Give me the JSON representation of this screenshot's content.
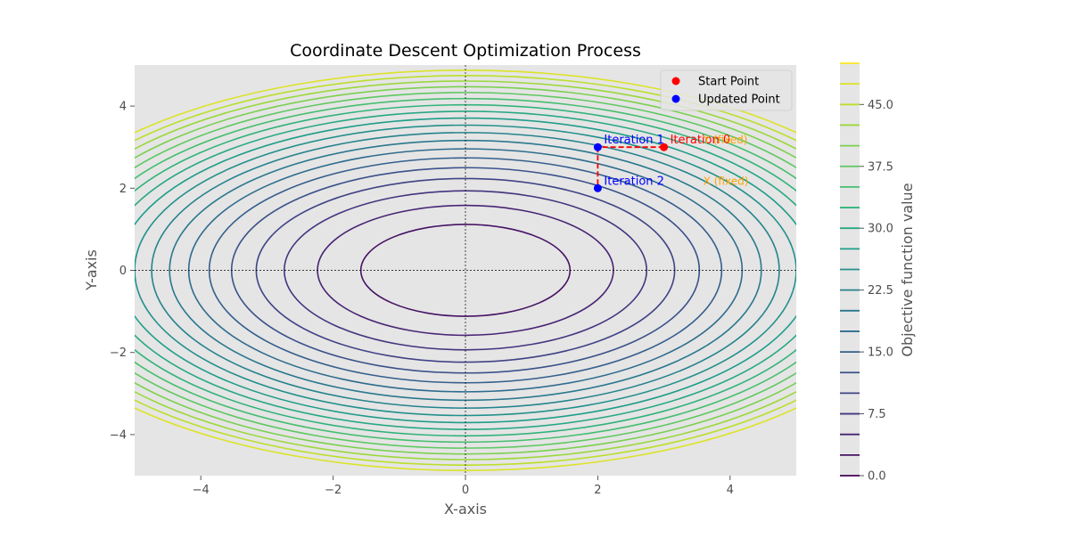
{
  "chart_data": {
    "type": "contour",
    "title": "Coordinate Descent Optimization Process",
    "xlabel": "X-axis",
    "ylabel": "Y-axis",
    "xlim": [
      -5,
      5
    ],
    "ylim": [
      -5,
      5
    ],
    "xticks": [
      -4,
      -2,
      0,
      2,
      4
    ],
    "yticks": [
      -4,
      -2,
      0,
      2,
      4
    ],
    "xtick_labels": [
      "−4",
      "−2",
      "0",
      "2",
      "4"
    ],
    "ytick_labels": [
      "−4",
      "−2",
      "0",
      "2",
      "4"
    ],
    "function": "x^2 + 2*y^2",
    "contour_levels": [
      2.5,
      5.0,
      7.5,
      10.0,
      12.5,
      15.0,
      17.5,
      20.0,
      22.5,
      25.0,
      27.5,
      30.0,
      32.5,
      35.0,
      37.5,
      40.0,
      42.5,
      45.0,
      47.5
    ],
    "colorbar": {
      "label": "Objective function value",
      "min": 0.0,
      "max": 50.0,
      "ticks": [
        0.0,
        7.5,
        15.0,
        22.5,
        30.0,
        37.5,
        45.0
      ],
      "tick_labels": [
        "0.0",
        "7.5",
        "15.0",
        "22.5",
        "30.0",
        "37.5",
        "45.0"
      ]
    },
    "series": [
      {
        "name": "Start Point",
        "color": "#ff0000",
        "points": [
          [
            3,
            3
          ]
        ]
      },
      {
        "name": "Updated Point",
        "color": "#0000ff",
        "points": [
          [
            2,
            3
          ],
          [
            2,
            2
          ]
        ]
      }
    ],
    "path": [
      [
        3,
        3
      ],
      [
        2,
        3
      ],
      [
        2,
        2
      ]
    ],
    "path_color": "#ff0000",
    "annotations": [
      {
        "text": "Iteration 0",
        "x": 3,
        "y": 3,
        "color": "#ff0000",
        "size": "normal"
      },
      {
        "text": "Iteration 1",
        "x": 2,
        "y": 3,
        "color": "#0000ff",
        "size": "normal"
      },
      {
        "text": "Iteration 2",
        "x": 2,
        "y": 2,
        "color": "#0000ff",
        "size": "normal"
      },
      {
        "text": "Y (fixed)",
        "x": 3.5,
        "y": 3,
        "color": "#ffa500",
        "size": "small"
      },
      {
        "text": "X (fixed)",
        "x": 3.5,
        "y": 2,
        "color": "#ffa500",
        "size": "small"
      }
    ],
    "grid": false,
    "crosshair_lines": true,
    "legend_position": "top-right",
    "background_color": "#e5e5e5"
  }
}
